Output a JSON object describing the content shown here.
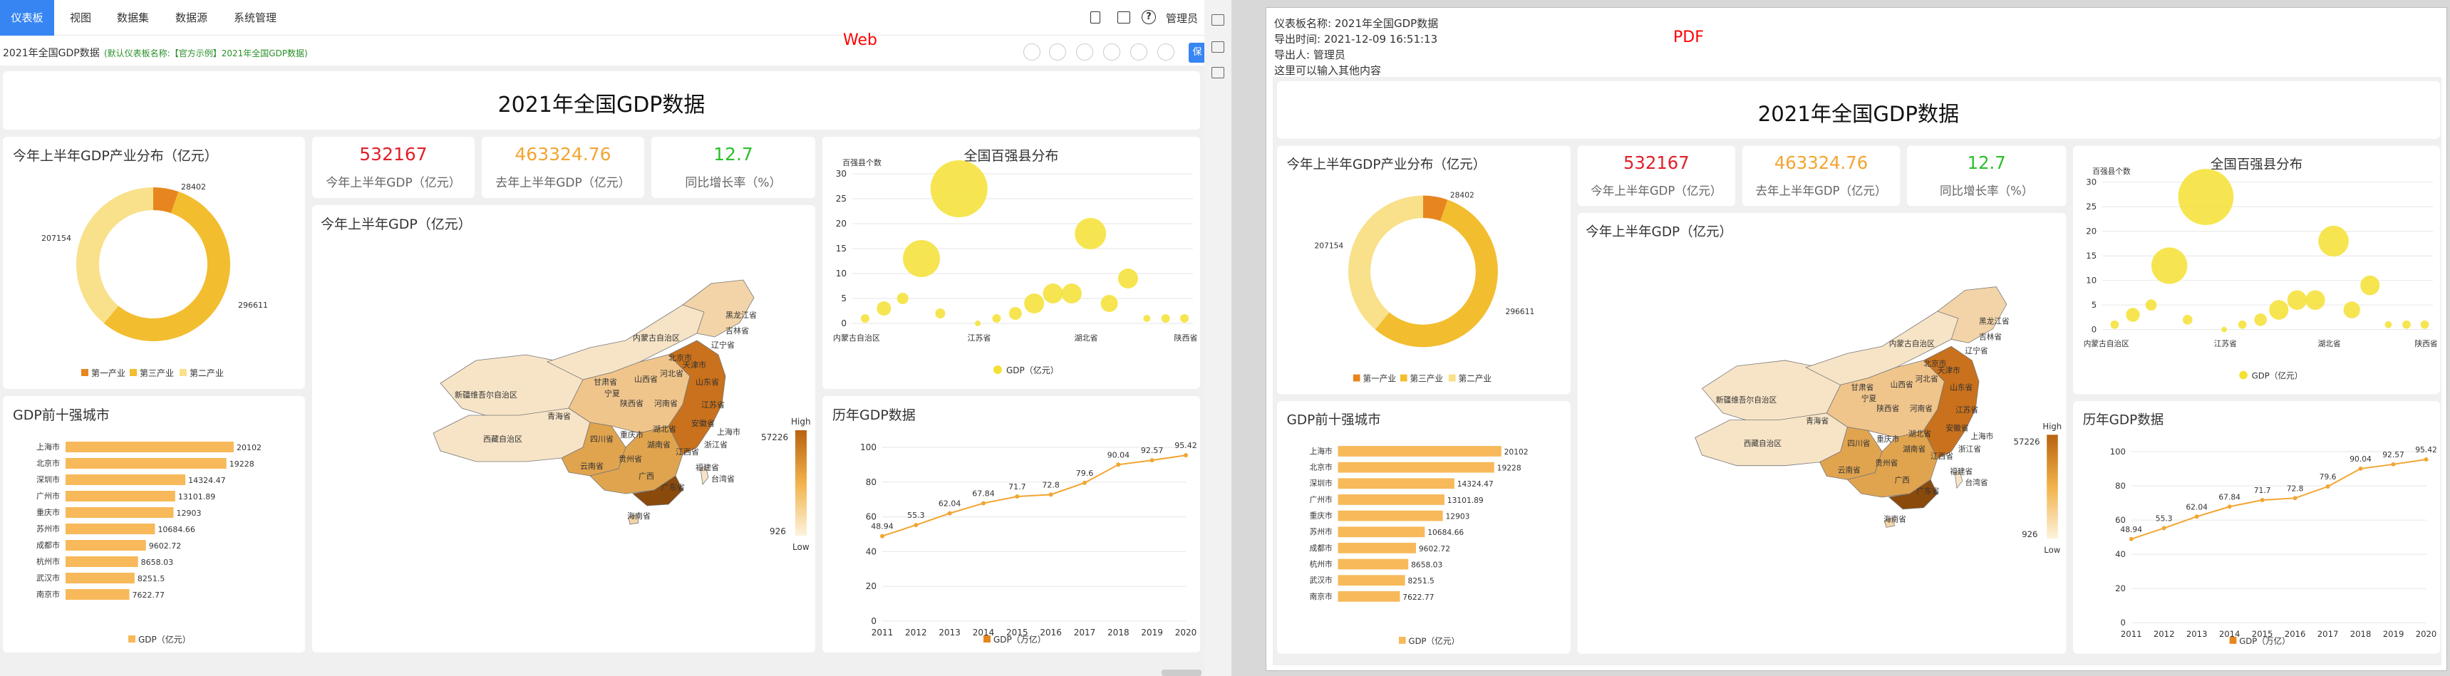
{
  "nav": {
    "items": [
      "仪表板",
      "视图",
      "数据集",
      "数据源",
      "系统管理"
    ],
    "user": "管理员"
  },
  "web": {
    "overlay_label": "Web",
    "dashboard_title": "2021年全国GDP数据",
    "sub_title": "(默认仪表板名称:【官方示例】2021年全国GDP数据)",
    "save_button": "保"
  },
  "pdf": {
    "overlay_label": "PDF",
    "info": {
      "name": "仪表板名称: 2021年全国GDP数据",
      "time": "导出时间: 2021-12-09 16:51:13",
      "user": "导出人: 管理员",
      "note": "这里可以输入其他内容"
    }
  },
  "dashboard": {
    "banner": "2021年全国GDP数据",
    "pie": {
      "title": "今年上半年GDP产业分布（亿元）",
      "legend": [
        "第一产业",
        "第三产业",
        "第二产业"
      ],
      "labels": [
        "28402",
        "296611",
        "207154"
      ]
    },
    "kpis": [
      {
        "value": "532167",
        "label": "今年上半年GDP（亿元）",
        "color": "#e0202a"
      },
      {
        "value": "463324.76",
        "label": "去年上半年GDP（亿元）",
        "color": "#f2a531"
      },
      {
        "value": "12.7",
        "label": "同比增长率（%）",
        "color": "#2cbf2c"
      }
    ],
    "map": {
      "title": "今年上半年GDP（亿元）",
      "max": "57226",
      "min": "926",
      "high": "High",
      "low": "Low",
      "labels": [
        "黑龙江省",
        "吉林省",
        "内蒙古自治区",
        "辽宁省",
        "新疆维吾尔自治区",
        "北京市",
        "天津市",
        "河北省",
        "山西省",
        "山东省",
        "甘肃省",
        "宁夏",
        "青海省",
        "陕西省",
        "河南省",
        "江苏省",
        "西藏自治区",
        "四川省",
        "重庆市",
        "湖北省",
        "安徽省",
        "上海市",
        "浙江省",
        "湖南省",
        "江西省",
        "云南省",
        "贵州省",
        "福建省",
        "广西",
        "广东省",
        "台湾省",
        "海南省"
      ]
    },
    "bubble": {
      "title": "全国百强县分布",
      "ylabel": "百强县个数",
      "yticks": [
        "30",
        "25",
        "20",
        "15",
        "10",
        "5",
        "0"
      ],
      "xticks": [
        "内蒙古自治区",
        "江苏省",
        "湖北省",
        "陕西省"
      ],
      "legend": "GDP（亿元）"
    },
    "bar": {
      "title": "GDP前十强城市",
      "legend": "GDP（亿元）",
      "cities": [
        "上海市",
        "北京市",
        "深圳市",
        "广州市",
        "重庆市",
        "苏州市",
        "成都市",
        "杭州市",
        "武汉市",
        "南京市"
      ],
      "values": [
        "20102",
        "19228",
        "14324.47",
        "13101.89",
        "12903",
        "10684.66",
        "9602.72",
        "8658.03",
        "8251.5",
        "7622.77"
      ]
    },
    "line": {
      "title": "历年GDP数据",
      "legend": "GDP（万亿）",
      "years": [
        "2011",
        "2012",
        "2013",
        "2014",
        "2015",
        "2016",
        "2017",
        "2018",
        "2019",
        "2020"
      ],
      "values": [
        "48.94",
        "55.3",
        "62.04",
        "67.84",
        "71.7",
        "72.8",
        "79.6",
        "90.04",
        "92.57",
        "95.42"
      ],
      "yticks": [
        "100",
        "80",
        "60",
        "40",
        "20",
        "0"
      ]
    }
  },
  "chart_data": [
    {
      "type": "pie",
      "title": "今年上半年GDP产业分布（亿元）",
      "categories": [
        "第一产业",
        "第三产业",
        "第二产业"
      ],
      "values": [
        28402,
        296611,
        207154
      ]
    },
    {
      "type": "bar",
      "title": "GDP前十强城市",
      "categories": [
        "上海市",
        "北京市",
        "深圳市",
        "广州市",
        "重庆市",
        "苏州市",
        "成都市",
        "杭州市",
        "武汉市",
        "南京市"
      ],
      "values": [
        20102,
        19228,
        14324.47,
        13101.89,
        12903,
        10684.66,
        9602.72,
        8658.03,
        8251.5,
        7622.77
      ],
      "series": [
        {
          "name": "GDP（亿元）",
          "values": [
            20102,
            19228,
            14324.47,
            13101.89,
            12903,
            10684.66,
            9602.72,
            8658.03,
            8251.5,
            7622.77
          ]
        }
      ]
    },
    {
      "type": "line",
      "title": "历年GDP数据",
      "x": [
        2011,
        2012,
        2013,
        2014,
        2015,
        2016,
        2017,
        2018,
        2019,
        2020
      ],
      "series": [
        {
          "name": "GDP（万亿）",
          "values": [
            48.94,
            55.3,
            62.04,
            67.84,
            71.7,
            72.8,
            79.6,
            90.04,
            92.57,
            95.42
          ]
        }
      ],
      "ylim": [
        0,
        100
      ]
    },
    {
      "type": "scatter",
      "title": "全国百强县分布",
      "ylabel": "百强县个数",
      "ylim": [
        0,
        30
      ],
      "series": [
        {
          "name": "GDP（亿元）",
          "points": [
            [
              0,
              1
            ],
            [
              1,
              3
            ],
            [
              2,
              5
            ],
            [
              3,
              13
            ],
            [
              4,
              2
            ],
            [
              5,
              27
            ],
            [
              6,
              0
            ],
            [
              7,
              1
            ],
            [
              8,
              2
            ],
            [
              9,
              4
            ],
            [
              10,
              6
            ],
            [
              11,
              6
            ],
            [
              12,
              18
            ],
            [
              13,
              4
            ],
            [
              14,
              9
            ],
            [
              15,
              1
            ],
            [
              16,
              1
            ],
            [
              17,
              1
            ]
          ]
        }
      ]
    }
  ]
}
